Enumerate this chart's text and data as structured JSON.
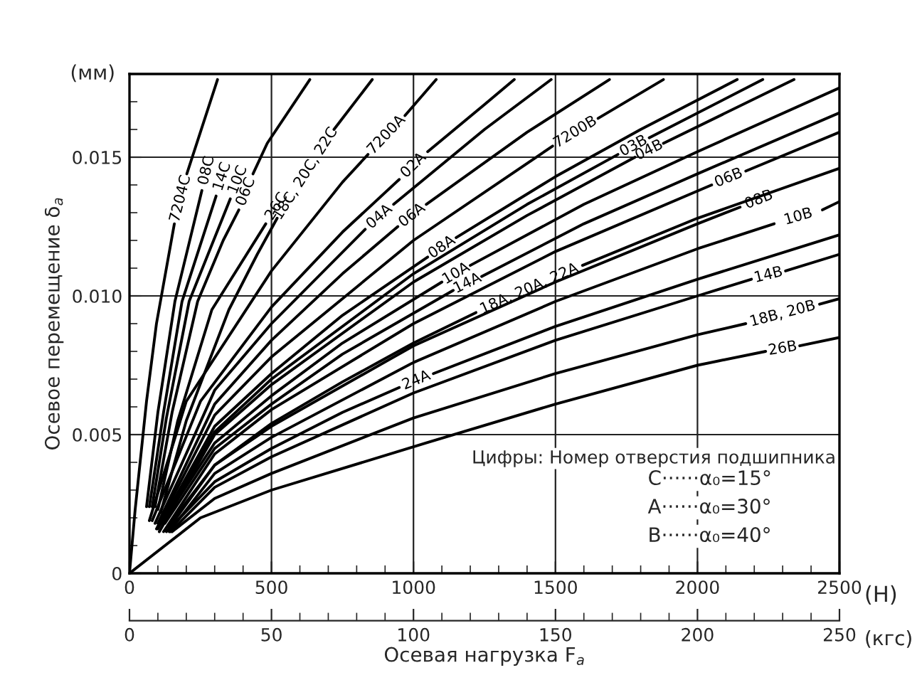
{
  "chart_data": {
    "type": "line",
    "xlabel": "Осевая нагрузка F$_{a}$",
    "ylabel": "Осевое перемещение δ$_{a}$",
    "xlim": [
      0,
      2500
    ],
    "xticks": [
      0,
      {
        "value": 100,
        "label": null
      },
      {
        "value": 200,
        "label": null
      },
      {
        "value": 300,
        "label": null
      },
      {
        "value": 400,
        "label": null
      },
      500,
      {
        "value": 600,
        "label": null
      },
      {
        "value": 700,
        "label": null
      },
      {
        "value": 800,
        "label": null
      },
      {
        "value": 900,
        "label": null
      },
      1000,
      {
        "value": 1100,
        "label": null
      },
      {
        "value": 1200,
        "label": null
      },
      {
        "value": 1300,
        "label": null
      },
      {
        "value": 1400,
        "label": null
      },
      1500,
      {
        "value": 1600,
        "label": null
      },
      {
        "value": 1700,
        "label": null
      },
      {
        "value": 1800,
        "label": null
      },
      {
        "value": 1900,
        "label": null
      },
      2000,
      {
        "value": 2100,
        "label": null
      },
      {
        "value": 2200,
        "label": null
      },
      {
        "value": 2300,
        "label": null
      },
      {
        "value": 2400,
        "label": null
      },
      2500
    ],
    "x2lim": [
      0,
      250
    ],
    "x2ticks": [
      0,
      {
        "value": 10,
        "label": null
      },
      {
        "value": 20,
        "label": null
      },
      {
        "value": 30,
        "label": null
      },
      {
        "value": 40,
        "label": null
      },
      50,
      {
        "value": 60,
        "label": null
      },
      {
        "value": 70,
        "label": null
      },
      {
        "value": 80,
        "label": null
      },
      {
        "value": 90,
        "label": null
      },
      100,
      {
        "value": 110,
        "label": null
      },
      {
        "value": 120,
        "label": null
      },
      {
        "value": 130,
        "label": null
      },
      {
        "value": 140,
        "label": null
      },
      150,
      {
        "value": 160,
        "label": null
      },
      {
        "value": 170,
        "label": null
      },
      {
        "value": 180,
        "label": null
      },
      {
        "value": 190,
        "label": null
      },
      200,
      {
        "value": 210,
        "label": null
      },
      {
        "value": 220,
        "label": null
      },
      {
        "value": 230,
        "label": null
      },
      {
        "value": 240,
        "label": null
      },
      250
    ],
    "ylim": [
      0,
      0.018
    ],
    "yticks": [
      0,
      {
        "value": 0.001,
        "label": null
      },
      {
        "value": 0.002,
        "label": null
      },
      {
        "value": 0.003,
        "label": null
      },
      {
        "value": 0.004,
        "label": null
      },
      0.005,
      {
        "value": 0.006,
        "label": null
      },
      {
        "value": 0.007,
        "label": null
      },
      {
        "value": 0.008,
        "label": null
      },
      {
        "value": 0.009,
        "label": null
      },
      {
        "value": 0.01,
        "label": "0.010"
      },
      {
        "value": 0.011,
        "label": null
      },
      {
        "value": 0.012,
        "label": null
      },
      {
        "value": 0.013,
        "label": null
      },
      {
        "value": 0.014,
        "label": null
      },
      0.015,
      {
        "value": 0.016,
        "label": null
      },
      {
        "value": 0.017,
        "label": null
      }
    ],
    "grid": true,
    "legend": false,
    "annotations": [
      "(мм)",
      "(Н)",
      "(кгс)",
      "Цифры: Номер отверстия подшипника",
      "C······α₀=15°",
      "A······α₀=30°",
      "B······α₀=40°"
    ],
    "series": [
      {
        "name": "7204C",
        "color": "#000000",
        "x": [
          0,
          20,
          60,
          95,
          158,
          180,
          202,
          310
        ],
        "values": [
          0,
          0.0023,
          0.0062,
          0.009,
          0.0126,
          null,
          0.0144,
          0.0178
        ]
      },
      {
        "name": "08C",
        "color": "#000000",
        "x": [
          60,
          100,
          160,
          255
        ],
        "values": [
          0.0024,
          0.0058,
          0.0098,
          0.0138
        ]
      },
      {
        "name": "14C",
        "color": "#000000",
        "x": [
          70,
          120,
          185,
          305
        ],
        "values": [
          0.0024,
          0.0058,
          0.0098,
          0.0136
        ]
      },
      {
        "name": "10C",
        "color": "#000000",
        "x": [
          80,
          130,
          210,
          355
        ],
        "values": [
          0.0024,
          0.0056,
          0.0098,
          0.0135
        ]
      },
      {
        "name": "06C",
        "color": "#000000",
        "x": [
          90,
          150,
          240,
          330,
          385,
          410,
          435,
          485,
          635
        ],
        "values": [
          0.0024,
          0.0058,
          0.0098,
          0.012,
          0.0131,
          null,
          0.0144,
          0.0155,
          0.0178
        ]
      },
      {
        "name": "26C",
        "color": "#000000",
        "x": [
          100,
          170,
          290,
          480
        ],
        "values": [
          0.0023,
          0.0055,
          0.0095,
          0.0126
        ]
      },
      {
        "name": "18C, 20C, 22C",
        "color": "#000000",
        "x": [
          110,
          200,
          350,
          450,
          520,
          620,
          720,
          855
        ],
        "values": [
          0.0022,
          0.0055,
          0.0095,
          0.0115,
          0.0128,
          null,
          0.016,
          0.0178
        ]
      },
      {
        "name": "7200A",
        "color": "#000000",
        "x": [
          70,
          200,
          500,
          750,
          840,
          905,
          970,
          1080
        ],
        "values": [
          0.0019,
          0.0062,
          0.0109,
          0.0141,
          0.0151,
          null,
          0.0165,
          0.0178
        ]
      },
      {
        "name": "02A",
        "color": "#000000",
        "x": [
          80,
          250,
          500,
          750,
          950,
          1000,
          1050,
          1250,
          1355
        ],
        "values": [
          0.0019,
          0.0062,
          0.0096,
          0.0123,
          0.0142,
          null,
          0.0152,
          0.0169,
          0.0178
        ]
      },
      {
        "name": "04A",
        "color": "#000000",
        "x": [
          90,
          300,
          500,
          830,
          880,
          930,
          1250,
          1485
        ],
        "values": [
          0.0018,
          0.0066,
          0.009,
          0.0124,
          null,
          0.0133,
          0.016,
          0.0178
        ]
      },
      {
        "name": "06A",
        "color": "#000000",
        "x": [
          100,
          300,
          500,
          750,
          945,
          995,
          1045,
          1400,
          1690
        ],
        "values": [
          0.0018,
          0.0061,
          0.0084,
          0.0108,
          0.0125,
          null,
          0.0133,
          0.0159,
          0.0178
        ]
      },
      {
        "name": "08A",
        "color": "#000000",
        "x": [
          110,
          300,
          500,
          750,
          1050,
          1100,
          1150,
          1500,
          1800,
          2140
        ],
        "values": [
          0.0018,
          0.0053,
          0.0072,
          0.0093,
          0.0114,
          null,
          0.0121,
          0.0143,
          0.016,
          0.0178
        ]
      },
      {
        "name": "10A",
        "color": "#000000",
        "x": [
          115,
          300,
          500,
          750,
          1100,
          1150,
          1200,
          1600,
          2000,
          2500
        ],
        "values": [
          0.0018,
          0.0047,
          0.0064,
          0.0083,
          0.0105,
          null,
          0.0111,
          0.0133,
          0.0152,
          0.0175
        ]
      },
      {
        "name": "14A",
        "color": "#000000",
        "x": [
          125,
          300,
          500,
          750,
          1140,
          1190,
          1240,
          1600,
          2000,
          2500
        ],
        "values": [
          0.0018,
          0.0045,
          0.0061,
          0.0079,
          0.0102,
          null,
          0.0107,
          0.0126,
          0.0144,
          0.0166
        ]
      },
      {
        "name": "18A, 20A, 22A",
        "color": "#000000",
        "x": [
          135,
          300,
          500,
          750,
          1000,
          1220,
          1400,
          1595,
          2000,
          2500
        ],
        "values": [
          0.0017,
          0.0039,
          0.0054,
          0.0069,
          0.0083,
          0.0094,
          null,
          0.0111,
          0.0128,
          0.0146
        ]
      },
      {
        "name": "24A",
        "color": "#000000",
        "x": [
          140,
          300,
          500,
          750,
          950,
          1010,
          1070,
          1500,
          2000,
          2500
        ],
        "values": [
          0.0016,
          0.0033,
          0.0045,
          0.0058,
          0.0067,
          null,
          0.0072,
          0.0089,
          0.0106,
          0.0122
        ]
      },
      {
        "name": "7200B",
        "color": "#000000",
        "x": [
          95,
          300,
          500,
          1000,
          1490,
          1570,
          1650,
          1880
        ],
        "values": [
          0.0016,
          0.0057,
          0.0078,
          0.012,
          0.0154,
          null,
          0.0164,
          0.0178
        ]
      },
      {
        "name": "03B",
        "color": "#000000",
        "x": [
          100,
          300,
          500,
          1000,
          1400,
          1720,
          1775,
          1830,
          2230
        ],
        "values": [
          0.0016,
          0.0051,
          0.007,
          0.0108,
          0.0133,
          0.0151,
          null,
          0.0157,
          0.0178
        ]
      },
      {
        "name": "04B",
        "color": "#000000",
        "x": [
          105,
          300,
          500,
          1000,
          1400,
          1780,
          1830,
          1880,
          2340
        ],
        "values": [
          0.0015,
          0.005,
          0.0068,
          0.0105,
          0.0129,
          0.015,
          null,
          0.0155,
          0.0178
        ]
      },
      {
        "name": "06B",
        "color": "#000000",
        "x": [
          120,
          300,
          500,
          1000,
          1500,
          2050,
          2110,
          2170,
          2500
        ],
        "values": [
          0.0015,
          0.0043,
          0.0059,
          0.009,
          0.0116,
          0.014,
          null,
          0.0145,
          0.0159
        ]
      },
      {
        "name": "08B",
        "color": "#000000",
        "x": [
          130,
          300,
          500,
          1000,
          1500,
          2000,
          2150
        ],
        "values": [
          0.0015,
          0.0039,
          0.0053,
          0.0082,
          0.0105,
          0.0126,
          0.0132
        ]
      },
      {
        "name": "10B",
        "color": "#000000",
        "x": [
          140,
          300,
          500,
          1000,
          1500,
          2000,
          2270,
          2355,
          2440,
          2500
        ],
        "values": [
          0.0015,
          0.0036,
          0.0049,
          0.0076,
          0.0098,
          0.0117,
          0.0126,
          null,
          0.0131,
          0.0134
        ]
      },
      {
        "name": "14B",
        "color": "#000000",
        "x": [
          145,
          300,
          500,
          1000,
          1500,
          2000,
          2190,
          2250,
          2310,
          2500
        ],
        "values": [
          0.0015,
          0.0031,
          0.0042,
          0.0065,
          0.0084,
          0.01,
          0.0106,
          null,
          0.0109,
          0.0115
        ]
      },
      {
        "name": "18B, 20B",
        "color": "#000000",
        "x": [
          150,
          300,
          500,
          1000,
          1500,
          2000,
          2170,
          2300,
          2430,
          2500
        ],
        "values": [
          0.0015,
          0.0027,
          0.0036,
          0.0056,
          0.0072,
          0.0086,
          0.009,
          null,
          0.0097,
          0.0099
        ]
      },
      {
        "name": "26B",
        "color": "#000000",
        "x": [
          0,
          250,
          500,
          1045,
          1500,
          2000,
          2240,
          2300,
          2360,
          2500
        ],
        "values": [
          0,
          0.002,
          0.003,
          0.0047,
          0.0061,
          0.0075,
          0.008,
          null,
          0.0082,
          0.0085
        ]
      }
    ]
  }
}
